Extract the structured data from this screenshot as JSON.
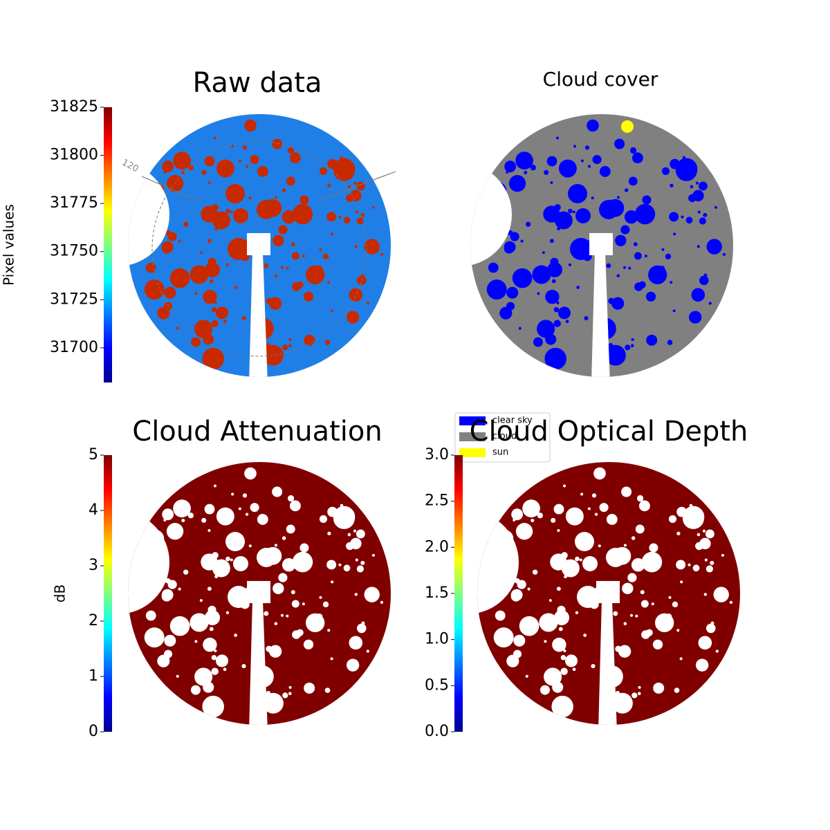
{
  "chart_data": [
    {
      "type": "image",
      "title": "Raw data",
      "ylabel": "Pixel values",
      "colormap": "jet",
      "ylim": [
        31682,
        31825
      ],
      "yticks": [
        31700,
        31725,
        31750,
        31775,
        31800,
        31825
      ],
      "annotations": [
        "120"
      ],
      "base_color": "#1f7fe6",
      "blob_color": "#c82a00"
    },
    {
      "type": "mask",
      "title": "Cloud cover",
      "series": [
        {
          "name": "clear sky",
          "color": "#0000ff"
        },
        {
          "name": "cloud",
          "color": "#808080"
        },
        {
          "name": "sun",
          "color": "#ffff00"
        }
      ]
    },
    {
      "type": "image",
      "title": "Cloud Attenuation",
      "ylabel": "dB",
      "colormap": "jet",
      "ylim": [
        0,
        5
      ],
      "yticks": [
        0,
        1,
        2,
        3,
        4,
        5
      ],
      "base_color": "#800000",
      "blob_color": "#ffffff"
    },
    {
      "type": "image",
      "title": "Cloud Optical Depth",
      "colormap": "jet",
      "ylim": [
        0,
        3
      ],
      "yticks": [
        {
          "value": 0,
          "label": "0.0"
        },
        0.5,
        {
          "value": 1,
          "label": "1.0"
        },
        1.5,
        {
          "value": 2,
          "label": "2.0"
        },
        2.5,
        {
          "value": 3,
          "label": "3.0"
        }
      ],
      "base_color": "#800000",
      "blob_color": "#ffffff"
    }
  ]
}
